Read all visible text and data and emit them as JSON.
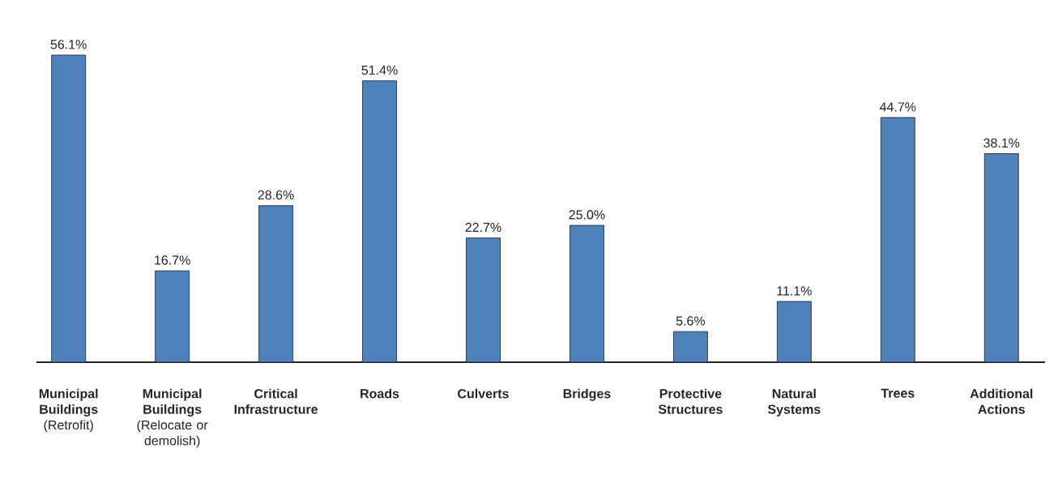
{
  "chart_data": {
    "type": "bar",
    "categories": [
      "**Municipal Buildings** (Retrofit)",
      "**Municipal Buildings** (Relocate or demolish)",
      "Critical Infrastructure",
      "Roads",
      "Culverts",
      "Bridges",
      "Protective Structures",
      "Natural Systems",
      "Trees",
      "Additional Actions"
    ],
    "values": [
      56.1,
      16.7,
      28.6,
      51.4,
      22.7,
      25.0,
      5.6,
      11.1,
      44.7,
      38.1
    ],
    "value_labels": [
      "56.1%",
      "16.7%",
      "28.6%",
      "51.4%",
      "22.7%",
      "25.0%",
      "5.6%",
      "11.1%",
      "44.7%",
      "38.1%"
    ],
    "color": "#4f81bd"
  }
}
